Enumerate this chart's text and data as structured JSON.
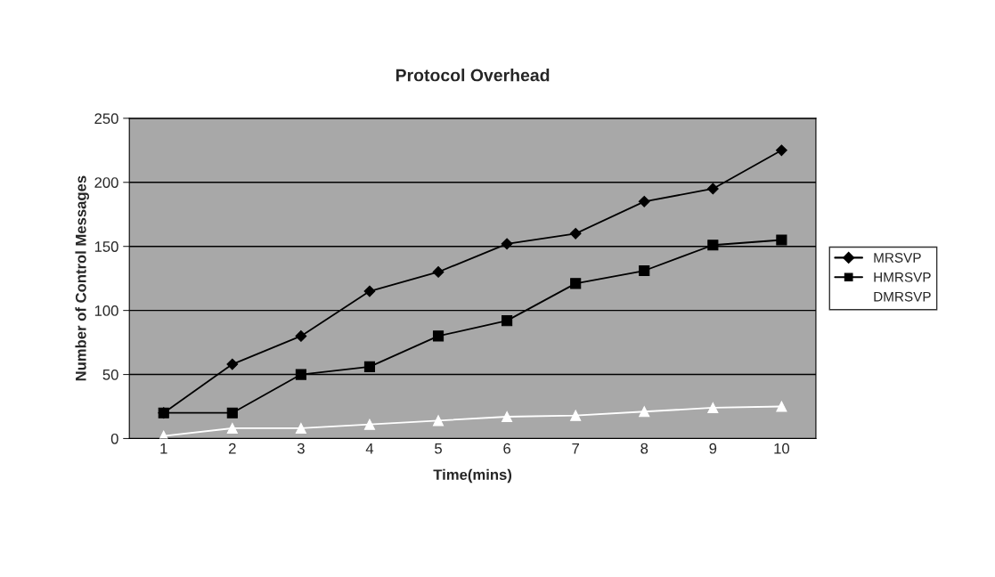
{
  "chart_data": {
    "type": "line",
    "title": "Protocol Overhead",
    "xlabel": "Time(mins)",
    "ylabel": "Number of Control Messages",
    "categories": [
      "1",
      "2",
      "3",
      "4",
      "5",
      "6",
      "7",
      "8",
      "9",
      "10"
    ],
    "series": [
      {
        "name": "MRSVP",
        "color": "#000000",
        "marker": "diamond",
        "values": [
          20,
          58,
          80,
          115,
          130,
          152,
          160,
          185,
          195,
          225
        ]
      },
      {
        "name": "HMRSVP",
        "color": "#000000",
        "marker": "square",
        "values": [
          20,
          20,
          50,
          56,
          80,
          92,
          121,
          131,
          151,
          155
        ]
      },
      {
        "name": "DMRSVP",
        "color": "#ffffff",
        "marker": "triangle",
        "values": [
          2,
          8,
          8,
          11,
          14,
          17,
          18,
          21,
          24,
          25
        ]
      }
    ],
    "ylim": [
      0,
      250
    ],
    "yticks": [
      0,
      50,
      100,
      150,
      200,
      250
    ],
    "grid": "y",
    "legend": "right"
  }
}
